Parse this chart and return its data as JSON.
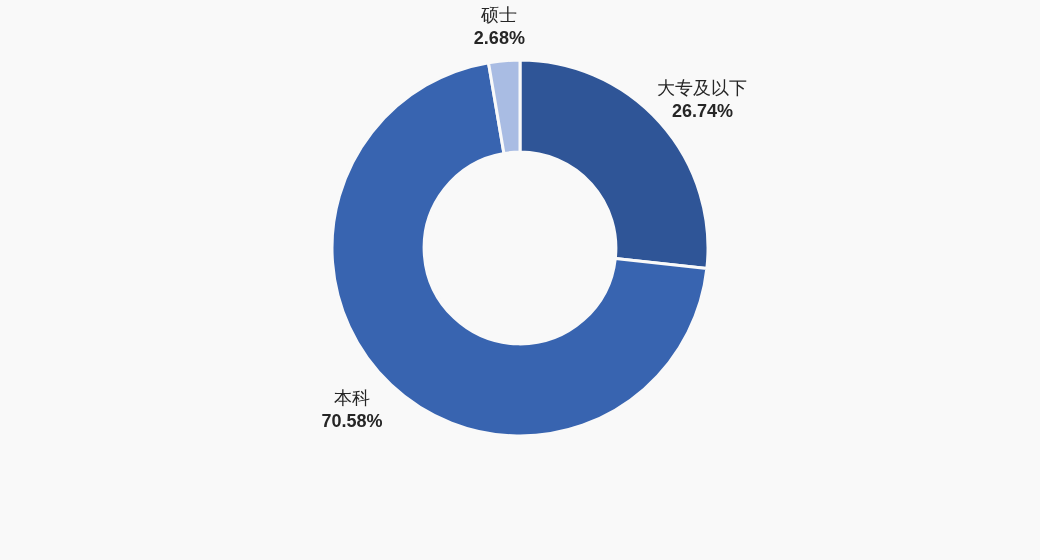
{
  "chart_data": {
    "type": "donut",
    "categories": [
      "大专及以下",
      "本科",
      "硕士"
    ],
    "values": [
      26.74,
      70.58,
      2.68
    ],
    "colors": [
      "#2f5597",
      "#3864b0",
      "#a9bce3"
    ],
    "value_labels": [
      "26.74%",
      "70.58%",
      "2.68%"
    ]
  }
}
